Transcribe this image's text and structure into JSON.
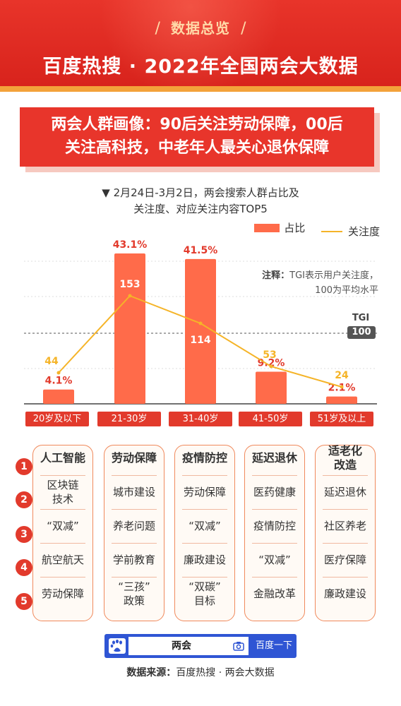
{
  "header": {
    "section_title": "数据总览",
    "main_title": "百度热搜 · 2022年全国两会大数据"
  },
  "headline": {
    "lead": "两会人群画像：",
    "line1_rest": "90后关注劳动保障，00后",
    "line2": "关注高科技，中老年人最关心退休保障"
  },
  "chart": {
    "caption_line1": "▼ 2月24日-3月2日，两会搜索人群占比及",
    "caption_line2": "关注度、对应关注内容TOP5",
    "legend_bar": "占比",
    "legend_line": "关注度",
    "note_label": "注释：",
    "note_line1": "TGI表示用户关注度，",
    "note_line2": "100为平均水平",
    "tgi_label": "TGI",
    "tgi_value": "100"
  },
  "colors": {
    "bar": "#ff6b4a",
    "line": "#f5b428",
    "accent": "#e23a2c"
  },
  "chart_data": {
    "type": "bar",
    "categories": [
      "20岁及以下",
      "21-30岁",
      "31-40岁",
      "41-50岁",
      "51岁及以上"
    ],
    "series": [
      {
        "name": "占比",
        "type": "bar",
        "values": [
          4.1,
          43.1,
          41.5,
          9.2,
          2.1
        ],
        "labels": [
          "4.1%",
          "43.1%",
          "41.5%",
          "9.2%",
          "2.1%"
        ]
      },
      {
        "name": "关注度",
        "type": "line",
        "values": [
          44,
          153,
          114,
          53,
          24
        ],
        "labels": [
          "44",
          "153",
          "114",
          "53",
          "24"
        ]
      }
    ],
    "reference_line": {
      "label": "TGI",
      "value": 100
    },
    "grid": true,
    "legend": "top-right"
  },
  "ranks": [
    "1",
    "2",
    "3",
    "4",
    "5"
  ],
  "topics": [
    [
      "人工智能",
      "区块链\n技术",
      "“双减”",
      "航空航天",
      "劳动保障"
    ],
    [
      "劳动保障",
      "城市建设",
      "养老问题",
      "学前教育",
      "“三孩”\n政策"
    ],
    [
      "疫情防控",
      "劳动保障",
      "“双减”",
      "廉政建设",
      "“双碳”\n目标"
    ],
    [
      "延迟退休",
      "医药健康",
      "疫情防控",
      "“双减”",
      "金融改革"
    ],
    [
      "适老化\n改造",
      "延迟退休",
      "社区养老",
      "医疗保障",
      "廉政建设"
    ]
  ],
  "search": {
    "query": "两会",
    "button": "百度一下"
  },
  "source": {
    "label": "数据来源：",
    "text": "百度热搜 · 两会大数据"
  }
}
